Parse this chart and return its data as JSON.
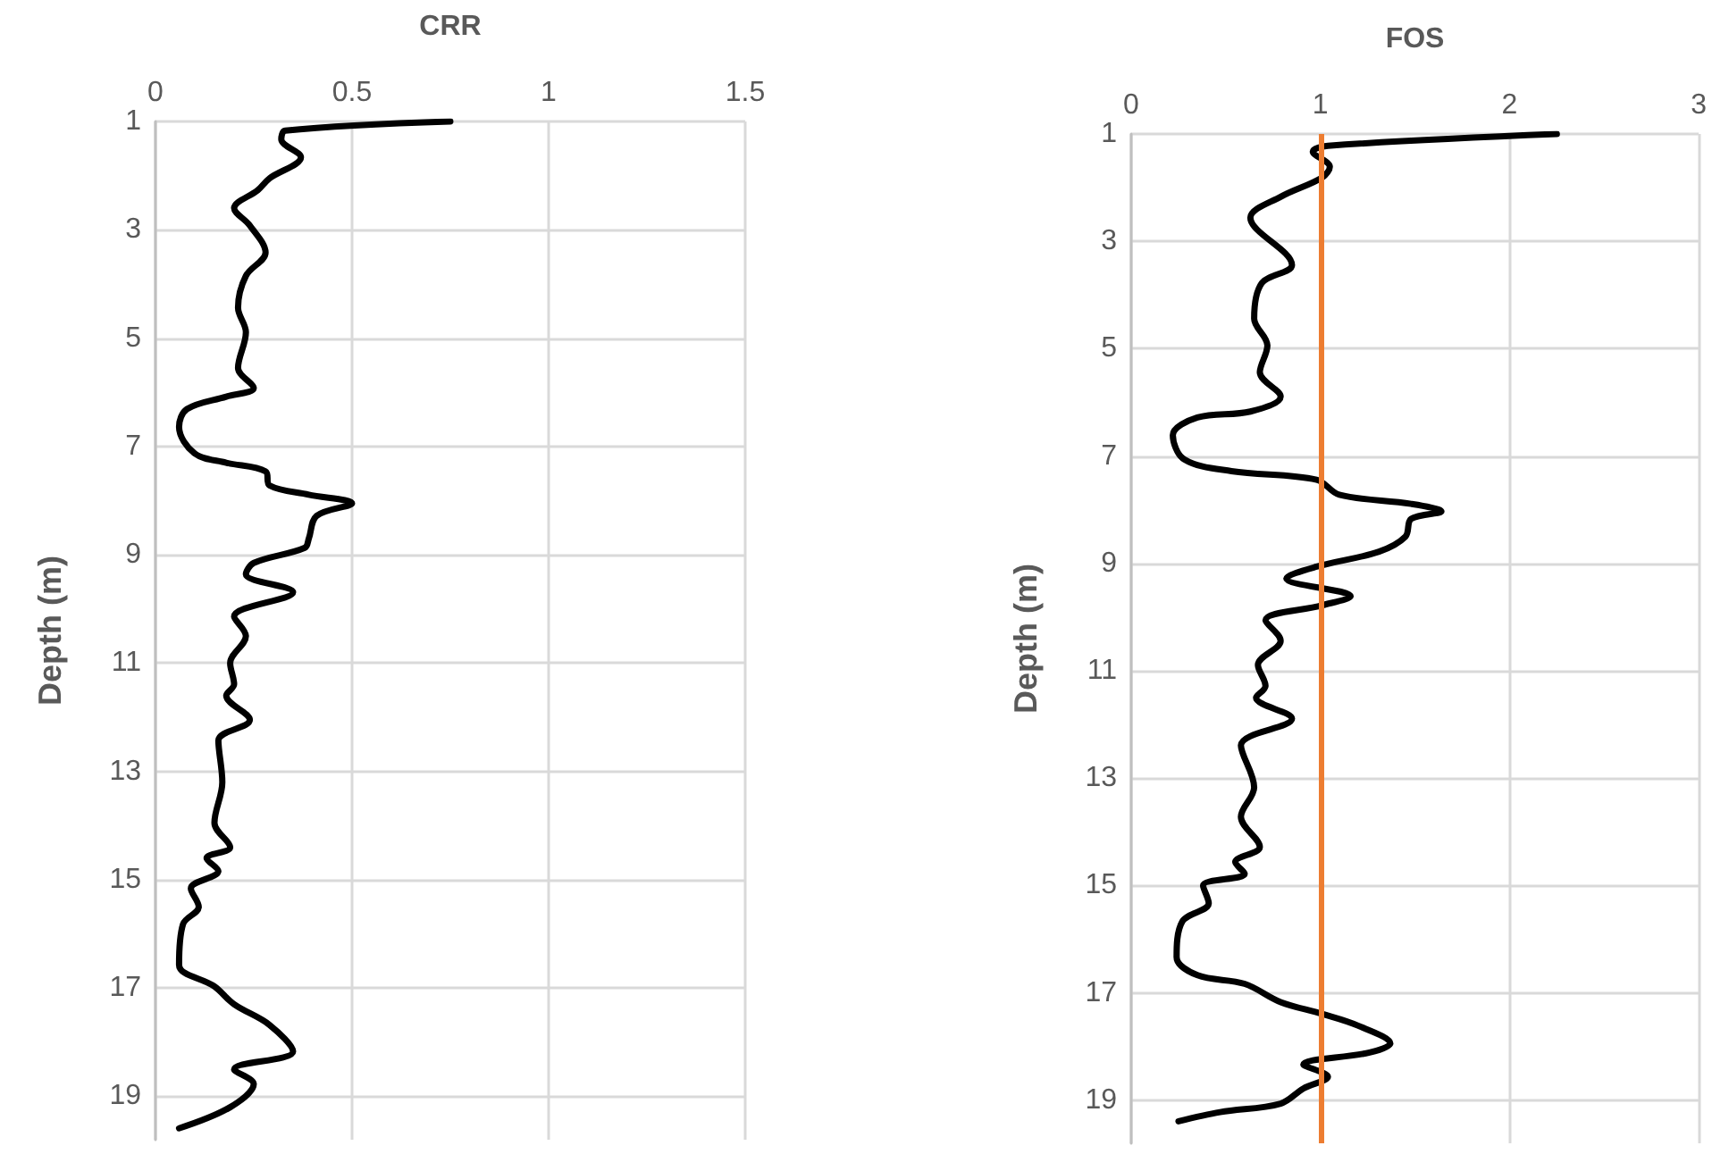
{
  "chart_data": [
    {
      "type": "line",
      "xlabel": "CRR",
      "ylabel": "Depth (m)",
      "xlim": [
        0,
        1.5
      ],
      "xticks": [
        0,
        0.5,
        1,
        1.5
      ],
      "ylim": [
        19.8,
        1
      ],
      "yticks": [
        1,
        3,
        5,
        7,
        9,
        11,
        13,
        15,
        17,
        19
      ],
      "grid": true,
      "marker": "none",
      "line_style": "solid",
      "series": [
        {
          "color": "#000000",
          "x": [
            0.75,
            0.33,
            0.32,
            0.37,
            0.29,
            0.26,
            0.2,
            0.24,
            0.28,
            0.23,
            0.21,
            0.23,
            0.21,
            0.25,
            0.18,
            0.08,
            0.06,
            0.1,
            0.18,
            0.28,
            0.29,
            0.39,
            0.5,
            0.41,
            0.39,
            0.38,
            0.25,
            0.23,
            0.35,
            0.2,
            0.23,
            0.19,
            0.2,
            0.18,
            0.24,
            0.16,
            0.17,
            0.15,
            0.19,
            0.13,
            0.16,
            0.09,
            0.11,
            0.07,
            0.06,
            0.15,
            0.2,
            0.29,
            0.35,
            0.2,
            0.25,
            0.19,
            0.06
          ],
          "values": [
            1,
            1.17,
            1.33,
            1.66,
            2.05,
            2.27,
            2.6,
            2.92,
            3.42,
            3.85,
            4.44,
            4.89,
            5.55,
            5.92,
            6.08,
            6.31,
            6.64,
            7.13,
            7.3,
            7.46,
            7.72,
            7.89,
            8.05,
            8.28,
            8.7,
            8.87,
            9.15,
            9.36,
            9.69,
            10.14,
            10.5,
            11.0,
            11.39,
            11.6,
            12.05,
            12.43,
            13.2,
            13.95,
            14.4,
            14.6,
            14.84,
            15.16,
            15.5,
            15.82,
            16.57,
            16.97,
            17.3,
            17.68,
            18.17,
            18.5,
            18.77,
            19.2,
            19.59
          ]
        }
      ]
    },
    {
      "type": "line",
      "xlabel": "FOS",
      "ylabel": "Depth (m)",
      "xlim": [
        0,
        3
      ],
      "xticks": [
        0,
        1,
        2,
        3
      ],
      "ylim": [
        19.8,
        1
      ],
      "yticks": [
        1,
        3,
        5,
        7,
        9,
        11,
        13,
        15,
        17,
        19
      ],
      "grid": true,
      "marker": "none",
      "line_style": "solid",
      "ref_lines": [
        {
          "axis": "x",
          "value": 1,
          "color": "#ed7d31"
        }
      ],
      "series": [
        {
          "color": "#000000",
          "x": [
            2.25,
            1.04,
            0.96,
            1.05,
            1.01,
            0.79,
            0.63,
            0.85,
            0.69,
            0.65,
            0.72,
            0.68,
            0.79,
            0.63,
            0.35,
            0.22,
            0.28,
            0.53,
            0.98,
            1.1,
            1.48,
            1.64,
            1.48,
            1.45,
            1.31,
            0.98,
            0.82,
            1.16,
            1.01,
            0.71,
            0.79,
            0.67,
            0.71,
            0.66,
            0.85,
            0.58,
            0.65,
            0.58,
            0.68,
            0.55,
            0.6,
            0.38,
            0.41,
            0.27,
            0.24,
            0.35,
            0.6,
            0.79,
            1.01,
            1.2,
            1.37,
            1.26,
            0.91,
            1.04,
            0.91,
            0.79,
            0.47,
            0.25
          ],
          "values": [
            1,
            1.22,
            1.33,
            1.61,
            1.81,
            2.17,
            2.56,
            3.44,
            3.78,
            4.44,
            4.94,
            5.44,
            5.89,
            6.17,
            6.28,
            6.61,
            7.06,
            7.28,
            7.44,
            7.72,
            7.89,
            8.03,
            8.17,
            8.5,
            8.78,
            9.06,
            9.28,
            9.61,
            9.78,
            10.06,
            10.44,
            10.89,
            11.28,
            11.5,
            11.89,
            12.39,
            13.17,
            13.72,
            14.28,
            14.56,
            14.78,
            15.0,
            15.33,
            15.67,
            16.33,
            16.67,
            16.83,
            17.17,
            17.39,
            17.61,
            17.94,
            18.11,
            18.33,
            18.56,
            18.78,
            19.06,
            19.22,
            19.39
          ]
        }
      ]
    }
  ]
}
